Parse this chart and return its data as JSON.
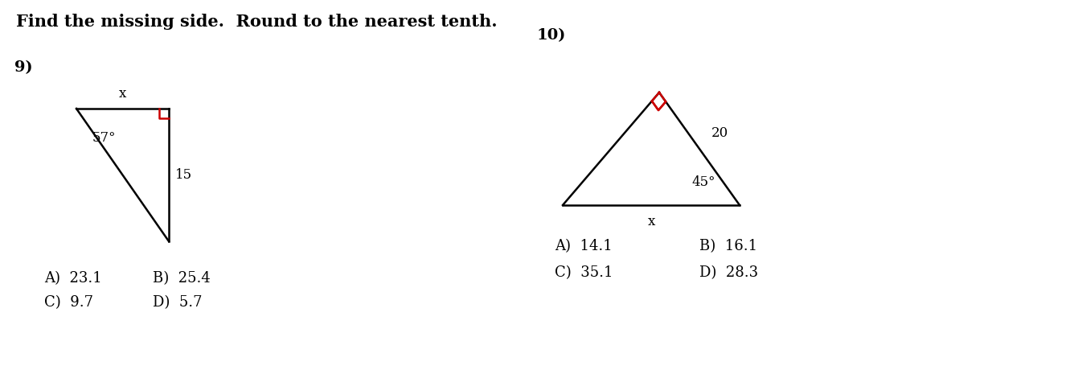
{
  "title": "Find the missing side.  Round to the nearest tenth.",
  "title_fontsize": 15,
  "title_fontweight": "bold",
  "background_color": "#ffffff",
  "q9_number": "9)",
  "q10_number": "10)",
  "q9_angle_label": "57°",
  "q9_side_label": "15",
  "q9_top_label": "x",
  "q9_answers_col1": [
    "A)  23.1",
    "C)  9.7"
  ],
  "q9_answers_col2": [
    "B)  25.4",
    "D)  5.7"
  ],
  "q10_angle_label": "45°",
  "q10_side_label": "20",
  "q10_bottom_label": "x",
  "q10_answers_col1": [
    "A)  14.1",
    "C)  35.1"
  ],
  "q10_answers_col2": [
    "B)  16.1",
    "D)  28.3"
  ],
  "right_angle_color": "#cc0000",
  "line_color": "#000000",
  "text_color": "#000000",
  "answer_fontsize": 13,
  "label_fontsize": 12,
  "number_fontsize": 14
}
